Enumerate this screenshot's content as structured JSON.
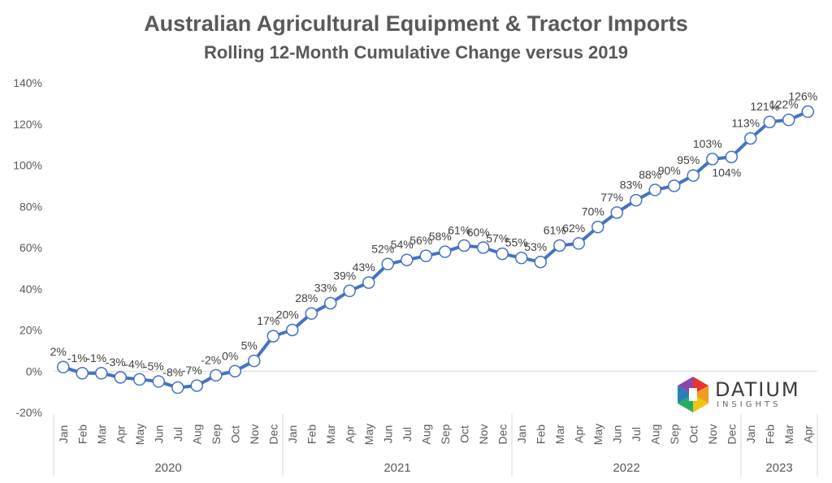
{
  "chart_data": {
    "type": "line",
    "title": "Australian Agricultural Equipment & Tractor Imports",
    "subtitle": "Rolling 12-Month Cumulative Change versus 2019",
    "xlabel": "",
    "ylabel": "",
    "ylim": [
      -20,
      140
    ],
    "yticks": [
      "-20%",
      "0%",
      "20%",
      "40%",
      "60%",
      "80%",
      "100%",
      "120%",
      "140%"
    ],
    "grid": "horizontal-baseline-only",
    "legend": "none",
    "line_color": "#4472C4",
    "groups": [
      {
        "label": "2020",
        "months": [
          "Jan",
          "Feb",
          "Mar",
          "Apr",
          "May",
          "Jun",
          "Jul",
          "Aug",
          "Sep",
          "Oct",
          "Nov",
          "Dec"
        ]
      },
      {
        "label": "2021",
        "months": [
          "Jan",
          "Feb",
          "Mar",
          "Apr",
          "May",
          "Jun",
          "Jul",
          "Aug",
          "Sep",
          "Oct",
          "Nov",
          "Dec"
        ]
      },
      {
        "label": "2022",
        "months": [
          "Jan",
          "Feb",
          "Mar",
          "Apr",
          "May",
          "Jun",
          "Jul",
          "Aug",
          "Sep",
          "Oct",
          "Nov",
          "Dec"
        ]
      },
      {
        "label": "2023",
        "months": [
          "Jan",
          "Feb",
          "Mar",
          "Apr"
        ]
      }
    ],
    "values": [
      2,
      -1,
      -1,
      -3,
      -4,
      -5,
      -8,
      -7,
      -2,
      0,
      5,
      17,
      20,
      28,
      33,
      39,
      43,
      52,
      54,
      56,
      58,
      61,
      60,
      57,
      55,
      53,
      61,
      62,
      70,
      77,
      83,
      88,
      90,
      95,
      103,
      104,
      113,
      121,
      122,
      126
    ],
    "data_labels": [
      "2%",
      "-1%",
      "-1%",
      "-3%",
      "-4%",
      "-5%",
      "-8%",
      "-7%",
      "-2%",
      "0%",
      "5%",
      "17%",
      "20%",
      "28%",
      "33%",
      "39%",
      "43%",
      "52%",
      "54%",
      "56%",
      "58%",
      "61%",
      "60%",
      "57%",
      "55%",
      "53%",
      "61%",
      "62%",
      "70%",
      "77%",
      "83%",
      "88%",
      "90%",
      "95%",
      "103%",
      "104%",
      "113%",
      "121%",
      "122%",
      "126%"
    ]
  },
  "logo": {
    "name": "DATIUM",
    "tagline": "INSIGHTS"
  }
}
